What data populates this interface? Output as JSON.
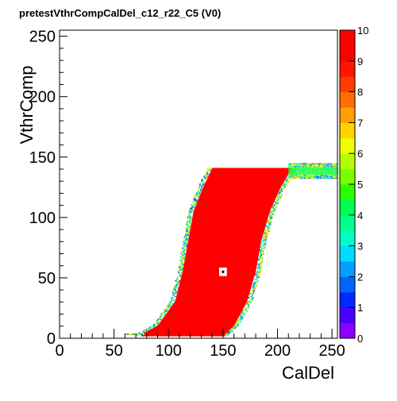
{
  "chart_data": {
    "type": "heatmap",
    "title": "pretestVthrCompCalDel_c12_r22_C5 (V0)",
    "xlabel": "CalDel",
    "ylabel": "VthrComp",
    "xlim": [
      0,
      255
    ],
    "ylim": [
      0,
      255
    ],
    "x_ticks": [
      0,
      50,
      100,
      150,
      200,
      250
    ],
    "y_ticks": [
      0,
      50,
      100,
      150,
      200,
      250
    ],
    "z_range": [
      0,
      10
    ],
    "z_ticks": [
      0,
      1,
      2,
      3,
      4,
      5,
      6,
      7,
      8,
      9,
      10
    ],
    "palette": [
      "#8b00ff",
      "#4b00ff",
      "#0028ff",
      "#0064ff",
      "#00a0ff",
      "#00dcff",
      "#00ffc8",
      "#00ff8c",
      "#00ff50",
      "#28ff00",
      "#78ff00",
      "#b4ff00",
      "#f0ff00",
      "#ffd200",
      "#ffa000",
      "#ff6e00",
      "#ff3c00",
      "#ff1400",
      "#ff0000",
      "#ff0000"
    ],
    "region": {
      "description_points": [
        {
          "y": 3,
          "x_lower": 75,
          "x_upper": 152
        },
        {
          "y": 10,
          "x_lower": 90,
          "x_upper": 160
        },
        {
          "y": 30,
          "x_lower": 106,
          "x_upper": 172
        },
        {
          "y": 55,
          "x_lower": 113,
          "x_upper": 180
        },
        {
          "y": 80,
          "x_lower": 118,
          "x_upper": 185
        },
        {
          "y": 105,
          "x_lower": 123,
          "x_upper": 193
        },
        {
          "y": 125,
          "x_lower": 132,
          "x_upper": 203
        },
        {
          "y": 140,
          "x_lower": 140,
          "x_upper": 213
        }
      ],
      "value": 10,
      "plateau": {
        "y_min": 133,
        "y_max": 145,
        "x_from": 210,
        "x_to": 255
      },
      "hole": {
        "x": 150,
        "y": 55,
        "size": 7
      }
    }
  }
}
